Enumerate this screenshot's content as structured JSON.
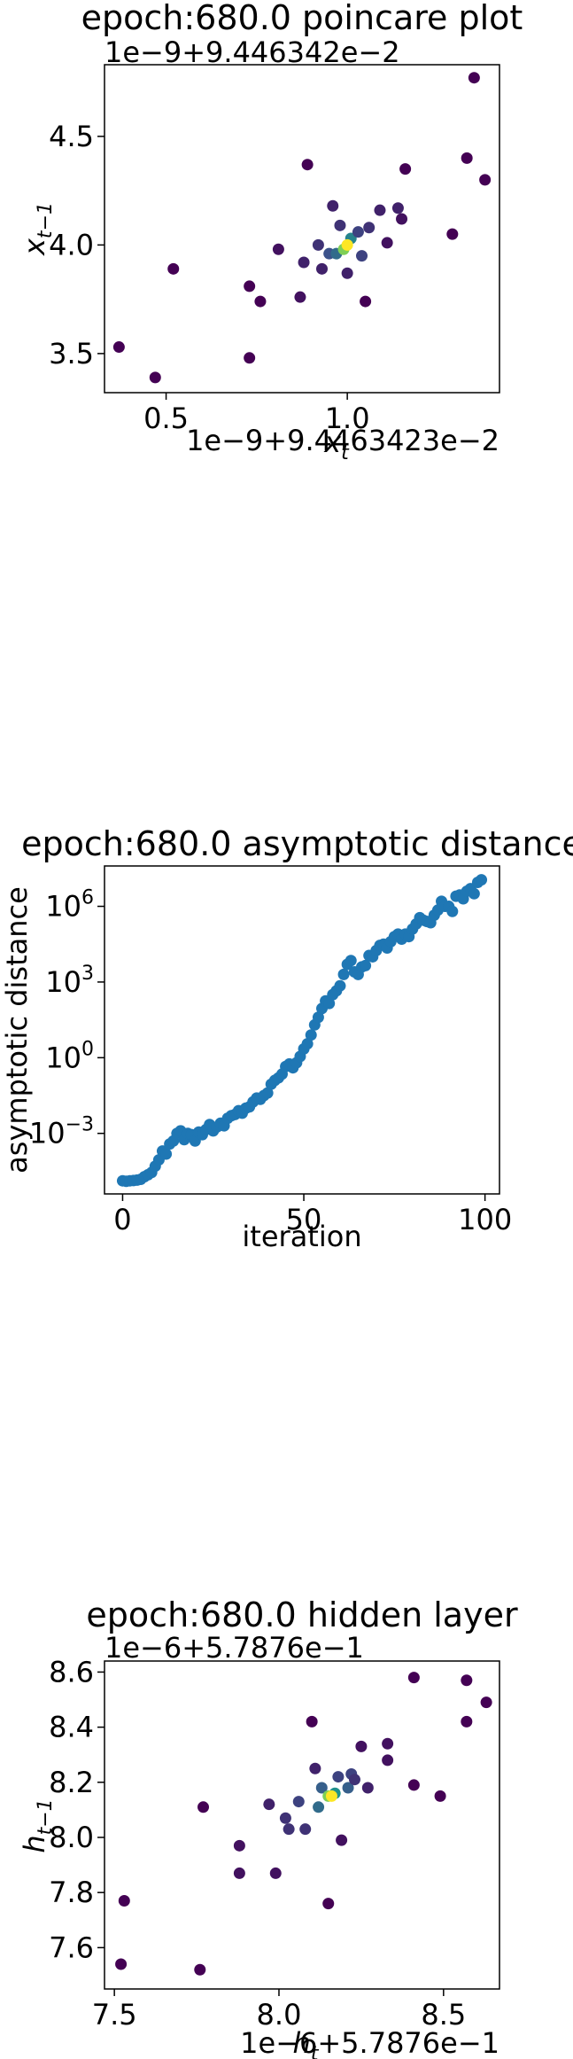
{
  "chart_data": [
    {
      "type": "scatter",
      "title": "epoch:680.0 poincare plot",
      "xlabel": "x_t",
      "ylabel": "x_{t-1}",
      "x_offset_text": "1e−9+9.4463423e−2",
      "y_offset_text": "1e−9+9.446342e−2",
      "xlim": [
        0.33,
        1.42
      ],
      "ylim": [
        3.32,
        4.83
      ],
      "xticks": [
        0.5,
        1.0
      ],
      "xtick_labels": [
        "0.5",
        "1.0"
      ],
      "yticks": [
        3.5,
        4.0,
        4.5
      ],
      "ytick_labels": [
        "3.5",
        "4.0",
        "4.5"
      ],
      "colormap": "viridis",
      "grid": false,
      "points": [
        {
          "x": 0.37,
          "y": 3.53,
          "d": 0.0
        },
        {
          "x": 0.47,
          "y": 3.39,
          "d": 0.0
        },
        {
          "x": 0.52,
          "y": 3.89,
          "d": 0.0
        },
        {
          "x": 0.73,
          "y": 3.48,
          "d": 0.0
        },
        {
          "x": 0.73,
          "y": 3.81,
          "d": 0.0
        },
        {
          "x": 0.76,
          "y": 3.74,
          "d": 0.0
        },
        {
          "x": 0.81,
          "y": 3.98,
          "d": 0.05
        },
        {
          "x": 0.87,
          "y": 3.76,
          "d": 0.05
        },
        {
          "x": 0.89,
          "y": 4.37,
          "d": 0.0
        },
        {
          "x": 0.88,
          "y": 3.92,
          "d": 0.1
        },
        {
          "x": 0.92,
          "y": 4.0,
          "d": 0.15
        },
        {
          "x": 0.93,
          "y": 3.89,
          "d": 0.1
        },
        {
          "x": 0.95,
          "y": 3.96,
          "d": 0.25
        },
        {
          "x": 0.96,
          "y": 4.18,
          "d": 0.1
        },
        {
          "x": 0.97,
          "y": 3.96,
          "d": 0.35
        },
        {
          "x": 0.98,
          "y": 4.09,
          "d": 0.15
        },
        {
          "x": 1.0,
          "y": 3.87,
          "d": 0.1
        },
        {
          "x": 1.01,
          "y": 4.03,
          "d": 0.45
        },
        {
          "x": 1.03,
          "y": 4.06,
          "d": 0.2
        },
        {
          "x": 1.04,
          "y": 3.95,
          "d": 0.2
        },
        {
          "x": 1.05,
          "y": 3.74,
          "d": 0.0
        },
        {
          "x": 1.06,
          "y": 4.08,
          "d": 0.15
        },
        {
          "x": 1.09,
          "y": 4.16,
          "d": 0.1
        },
        {
          "x": 1.11,
          "y": 4.01,
          "d": 0.05
        },
        {
          "x": 1.14,
          "y": 4.17,
          "d": 0.1
        },
        {
          "x": 1.15,
          "y": 4.12,
          "d": 0.05
        },
        {
          "x": 1.16,
          "y": 4.35,
          "d": 0.0
        },
        {
          "x": 1.29,
          "y": 4.05,
          "d": 0.0
        },
        {
          "x": 1.33,
          "y": 4.4,
          "d": 0.0
        },
        {
          "x": 1.35,
          "y": 4.77,
          "d": 0.0
        },
        {
          "x": 1.38,
          "y": 4.3,
          "d": 0.0
        },
        {
          "x": 0.99,
          "y": 3.98,
          "d": 0.8
        },
        {
          "x": 1.0,
          "y": 4.0,
          "d": 1.0
        }
      ]
    },
    {
      "type": "scatter",
      "title": "epoch:680.0 asymptotic distance",
      "xlabel": "iteration",
      "ylabel": "asymptotic distance",
      "yscale": "log",
      "xlim": [
        -5,
        104
      ],
      "ylim_exp": [
        -5.4,
        7.6
      ],
      "xticks": [
        0,
        50,
        100
      ],
      "xtick_labels": [
        "0",
        "50",
        "100"
      ],
      "yticks_exp": [
        -3,
        0,
        3,
        6
      ],
      "ytick_labels": [
        "10−3",
        "100",
        "103",
        "106"
      ],
      "color": "#1f77b4",
      "grid": false,
      "x": [
        0,
        1,
        2,
        3,
        4,
        5,
        6,
        7,
        8,
        9,
        10,
        11,
        12,
        13,
        14,
        15,
        16,
        17,
        18,
        19,
        20,
        21,
        22,
        23,
        24,
        25,
        26,
        27,
        28,
        29,
        30,
        31,
        32,
        33,
        34,
        35,
        36,
        37,
        38,
        39,
        40,
        41,
        42,
        43,
        44,
        45,
        46,
        47,
        48,
        49,
        50,
        51,
        52,
        53,
        54,
        55,
        56,
        57,
        58,
        59,
        60,
        61,
        62,
        63,
        64,
        65,
        66,
        67,
        68,
        69,
        70,
        71,
        72,
        73,
        74,
        75,
        76,
        77,
        78,
        79,
        80,
        81,
        82,
        83,
        84,
        85,
        86,
        87,
        88,
        89,
        90,
        91,
        92,
        93,
        94,
        95,
        96,
        97,
        98,
        99
      ],
      "log10_y": [
        -4.88,
        -4.9,
        -4.88,
        -4.87,
        -4.85,
        -4.82,
        -4.72,
        -4.64,
        -4.55,
        -4.3,
        -4.05,
        -3.7,
        -3.82,
        -3.42,
        -3.3,
        -3.0,
        -2.9,
        -3.25,
        -3.0,
        -3.05,
        -3.3,
        -2.95,
        -3.05,
        -2.85,
        -2.65,
        -2.9,
        -2.75,
        -2.6,
        -2.7,
        -2.4,
        -2.3,
        -2.25,
        -2.1,
        -2.2,
        -2.0,
        -1.95,
        -1.75,
        -1.6,
        -1.65,
        -1.5,
        -1.4,
        -1.05,
        -0.9,
        -0.8,
        -0.65,
        -0.35,
        -0.25,
        -0.4,
        -0.2,
        0.05,
        0.35,
        0.55,
        0.9,
        1.3,
        1.6,
        1.95,
        2.25,
        2.15,
        2.5,
        2.65,
        2.85,
        3.3,
        3.7,
        3.85,
        3.4,
        3.3,
        3.6,
        3.65,
        4.05,
        4.0,
        4.25,
        4.45,
        4.5,
        4.35,
        4.6,
        4.8,
        4.9,
        4.7,
        4.9,
        4.8,
        5.1,
        5.3,
        5.55,
        5.45,
        5.4,
        5.35,
        5.65,
        5.85,
        6.2,
        6.0,
        6.0,
        5.8,
        6.4,
        6.45,
        6.3,
        6.6,
        6.7,
        6.5,
        6.95,
        7.05
      ]
    },
    {
      "type": "scatter",
      "title": "epoch:680.0 hidden layer",
      "xlabel": "h_t",
      "ylabel": "h_{t-1}",
      "x_offset_text": "1e−6+5.7876e−1",
      "y_offset_text": "1e−6+5.7876e−1",
      "xlim": [
        7.47,
        8.67
      ],
      "ylim": [
        7.45,
        8.64
      ],
      "xticks": [
        7.5,
        8.0,
        8.5
      ],
      "xtick_labels": [
        "7.5",
        "8.0",
        "8.5"
      ],
      "yticks": [
        7.6,
        7.8,
        8.0,
        8.2,
        8.4,
        8.6
      ],
      "ytick_labels": [
        "7.6",
        "7.8",
        "8.0",
        "8.2",
        "8.4",
        "8.6"
      ],
      "colormap": "viridis",
      "grid": false,
      "points": [
        {
          "x": 7.52,
          "y": 7.54,
          "d": 0.0
        },
        {
          "x": 7.53,
          "y": 7.77,
          "d": 0.0
        },
        {
          "x": 7.76,
          "y": 7.52,
          "d": 0.0
        },
        {
          "x": 7.77,
          "y": 8.11,
          "d": 0.0
        },
        {
          "x": 7.88,
          "y": 7.97,
          "d": 0.05
        },
        {
          "x": 7.88,
          "y": 7.87,
          "d": 0.05
        },
        {
          "x": 7.97,
          "y": 8.12,
          "d": 0.1
        },
        {
          "x": 7.99,
          "y": 7.87,
          "d": 0.05
        },
        {
          "x": 8.02,
          "y": 8.07,
          "d": 0.15
        },
        {
          "x": 8.03,
          "y": 8.03,
          "d": 0.15
        },
        {
          "x": 8.06,
          "y": 8.13,
          "d": 0.2
        },
        {
          "x": 8.08,
          "y": 8.03,
          "d": 0.15
        },
        {
          "x": 8.1,
          "y": 8.42,
          "d": 0.0
        },
        {
          "x": 8.11,
          "y": 8.25,
          "d": 0.1
        },
        {
          "x": 8.12,
          "y": 8.11,
          "d": 0.35
        },
        {
          "x": 8.13,
          "y": 8.18,
          "d": 0.3
        },
        {
          "x": 8.15,
          "y": 7.76,
          "d": 0.0
        },
        {
          "x": 8.17,
          "y": 8.16,
          "d": 0.5
        },
        {
          "x": 8.18,
          "y": 8.22,
          "d": 0.2
        },
        {
          "x": 8.19,
          "y": 7.99,
          "d": 0.05
        },
        {
          "x": 8.21,
          "y": 8.18,
          "d": 0.3
        },
        {
          "x": 8.22,
          "y": 8.23,
          "d": 0.2
        },
        {
          "x": 8.23,
          "y": 8.21,
          "d": 0.15
        },
        {
          "x": 8.25,
          "y": 8.33,
          "d": 0.05
        },
        {
          "x": 8.27,
          "y": 8.18,
          "d": 0.1
        },
        {
          "x": 8.33,
          "y": 8.34,
          "d": 0.05
        },
        {
          "x": 8.33,
          "y": 8.28,
          "d": 0.05
        },
        {
          "x": 8.41,
          "y": 8.58,
          "d": 0.0
        },
        {
          "x": 8.41,
          "y": 8.19,
          "d": 0.0
        },
        {
          "x": 8.49,
          "y": 8.15,
          "d": 0.0
        },
        {
          "x": 8.57,
          "y": 8.57,
          "d": 0.0
        },
        {
          "x": 8.57,
          "y": 8.42,
          "d": 0.0
        },
        {
          "x": 8.63,
          "y": 8.49,
          "d": 0.0
        },
        {
          "x": 8.15,
          "y": 8.15,
          "d": 0.8
        },
        {
          "x": 8.16,
          "y": 8.15,
          "d": 1.0
        }
      ]
    }
  ]
}
